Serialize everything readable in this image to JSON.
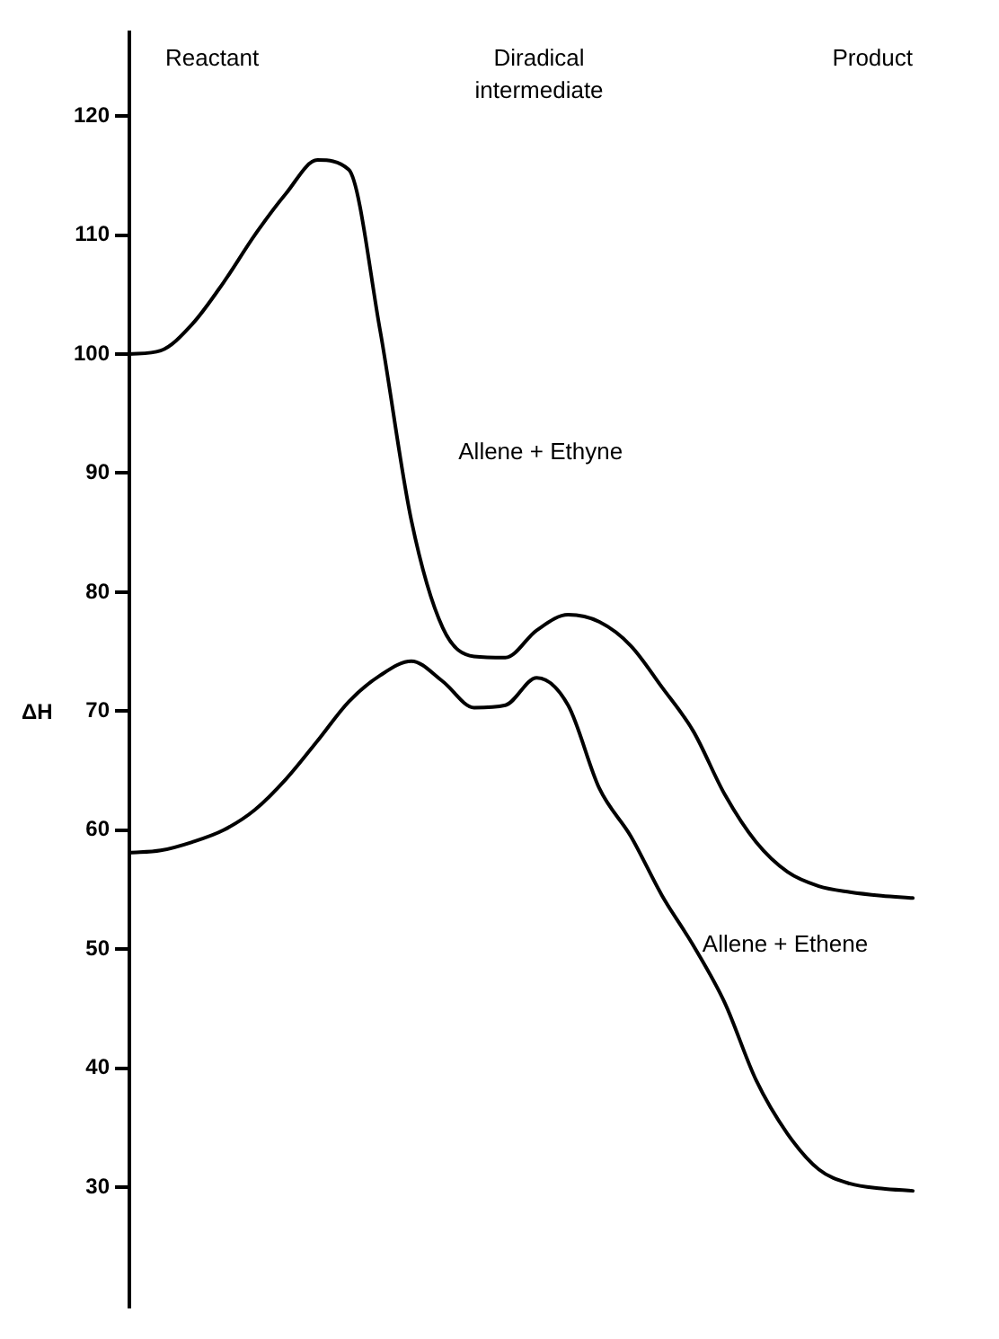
{
  "chart_data": {
    "type": "line",
    "ylabel": "ΔH",
    "categories": [
      null,
      null,
      null,
      null,
      null,
      null,
      null,
      null,
      null,
      null,
      null,
      null,
      null,
      null,
      null,
      null,
      null,
      null,
      null,
      null,
      null,
      null,
      null,
      null,
      null,
      null
    ],
    "series": [
      {
        "name": "Allene + Ethyne",
        "color": "#000000",
        "values": [
          100,
          100.3,
          102.5,
          106,
          110,
          113.5,
          116.3,
          115.5,
          102,
          86,
          77,
          74.6,
          74.5,
          76.8,
          78.1,
          77.5,
          75.5,
          72,
          68.3,
          63,
          59,
          56.5,
          55.3,
          54.8,
          54.5,
          54.3
        ]
      },
      {
        "name": "Allene + Ethene",
        "color": "#000000",
        "values": [
          58.1,
          58.3,
          59,
          60,
          61.7,
          64.3,
          67.5,
          70.8,
          73,
          74.2,
          72.5,
          70.3,
          70.5,
          72.8,
          70.5,
          63.5,
          59.5,
          54.5,
          50.3,
          45.5,
          39,
          34.5,
          31.5,
          30.3,
          29.9,
          29.7
        ]
      }
    ],
    "ylim": [
      20,
      127
    ],
    "yticks": [
      30,
      40,
      50,
      60,
      70,
      80,
      90,
      100,
      110,
      120
    ],
    "marker": "none",
    "line_style": "solid",
    "annotations": [
      "Reactant",
      "Diradical intermediate",
      "Product"
    ]
  }
}
